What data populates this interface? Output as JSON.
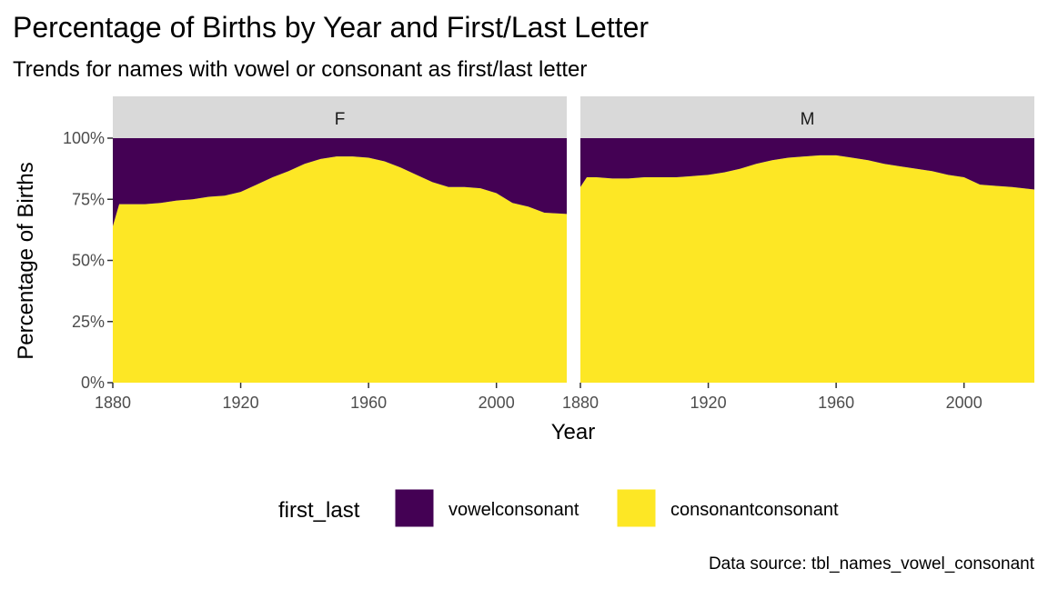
{
  "chart_data": {
    "type": "area",
    "stacked": true,
    "title": "Percentage of Births by Year and First/Last Letter",
    "subtitle": "Trends for names with vowel or consonant as first/last letter",
    "xlabel": "Year",
    "ylabel": "Percentage of Births",
    "caption": "Data source: tbl_names_vowel_consonant",
    "xlim": [
      1880,
      2022
    ],
    "ylim": [
      0,
      1
    ],
    "x_ticks": [
      1880,
      1920,
      1960,
      2000
    ],
    "y_ticks": [
      0,
      0.25,
      0.5,
      0.75,
      1.0
    ],
    "y_tick_labels": [
      "0%",
      "25%",
      "50%",
      "75%",
      "100%"
    ],
    "legend": {
      "title": "first_last",
      "position": "bottom",
      "entries": [
        {
          "name": "vowelconsonant",
          "color": "#440154"
        },
        {
          "name": "consonantconsonant",
          "color": "#FDE725"
        }
      ]
    },
    "grid": false,
    "panels": [
      {
        "facet": "F",
        "x": [
          1880,
          1882,
          1885,
          1890,
          1895,
          1900,
          1905,
          1910,
          1915,
          1920,
          1925,
          1930,
          1935,
          1940,
          1945,
          1950,
          1955,
          1960,
          1965,
          1970,
          1975,
          1980,
          1985,
          1990,
          1995,
          2000,
          2005,
          2010,
          2015,
          2022
        ],
        "series": [
          {
            "name": "consonantconsonant",
            "values": [
              0.64,
              0.73,
              0.73,
              0.73,
              0.735,
              0.745,
              0.75,
              0.76,
              0.765,
              0.78,
              0.81,
              0.84,
              0.865,
              0.895,
              0.915,
              0.925,
              0.925,
              0.92,
              0.905,
              0.88,
              0.85,
              0.82,
              0.8,
              0.8,
              0.795,
              0.775,
              0.735,
              0.72,
              0.695,
              0.69
            ]
          },
          {
            "name": "vowelconsonant",
            "values": [
              0.36,
              0.27,
              0.27,
              0.27,
              0.265,
              0.255,
              0.25,
              0.24,
              0.235,
              0.22,
              0.19,
              0.16,
              0.135,
              0.105,
              0.085,
              0.075,
              0.075,
              0.08,
              0.095,
              0.12,
              0.15,
              0.18,
              0.2,
              0.2,
              0.205,
              0.225,
              0.265,
              0.28,
              0.305,
              0.31
            ]
          }
        ]
      },
      {
        "facet": "M",
        "x": [
          1880,
          1882,
          1885,
          1890,
          1895,
          1900,
          1905,
          1910,
          1915,
          1920,
          1925,
          1930,
          1935,
          1940,
          1945,
          1950,
          1955,
          1960,
          1965,
          1970,
          1975,
          1980,
          1985,
          1990,
          1995,
          2000,
          2005,
          2010,
          2015,
          2022
        ],
        "series": [
          {
            "name": "consonantconsonant",
            "values": [
              0.8,
              0.84,
              0.84,
              0.835,
              0.835,
              0.84,
              0.84,
              0.84,
              0.845,
              0.85,
              0.86,
              0.875,
              0.895,
              0.91,
              0.92,
              0.925,
              0.93,
              0.93,
              0.92,
              0.91,
              0.895,
              0.885,
              0.875,
              0.865,
              0.85,
              0.84,
              0.81,
              0.805,
              0.8,
              0.79
            ]
          },
          {
            "name": "vowelconsonant",
            "values": [
              0.2,
              0.16,
              0.16,
              0.165,
              0.165,
              0.16,
              0.16,
              0.16,
              0.155,
              0.15,
              0.14,
              0.125,
              0.105,
              0.09,
              0.08,
              0.075,
              0.07,
              0.07,
              0.08,
              0.09,
              0.105,
              0.115,
              0.125,
              0.135,
              0.15,
              0.16,
              0.19,
              0.195,
              0.2,
              0.21
            ]
          }
        ]
      }
    ]
  }
}
